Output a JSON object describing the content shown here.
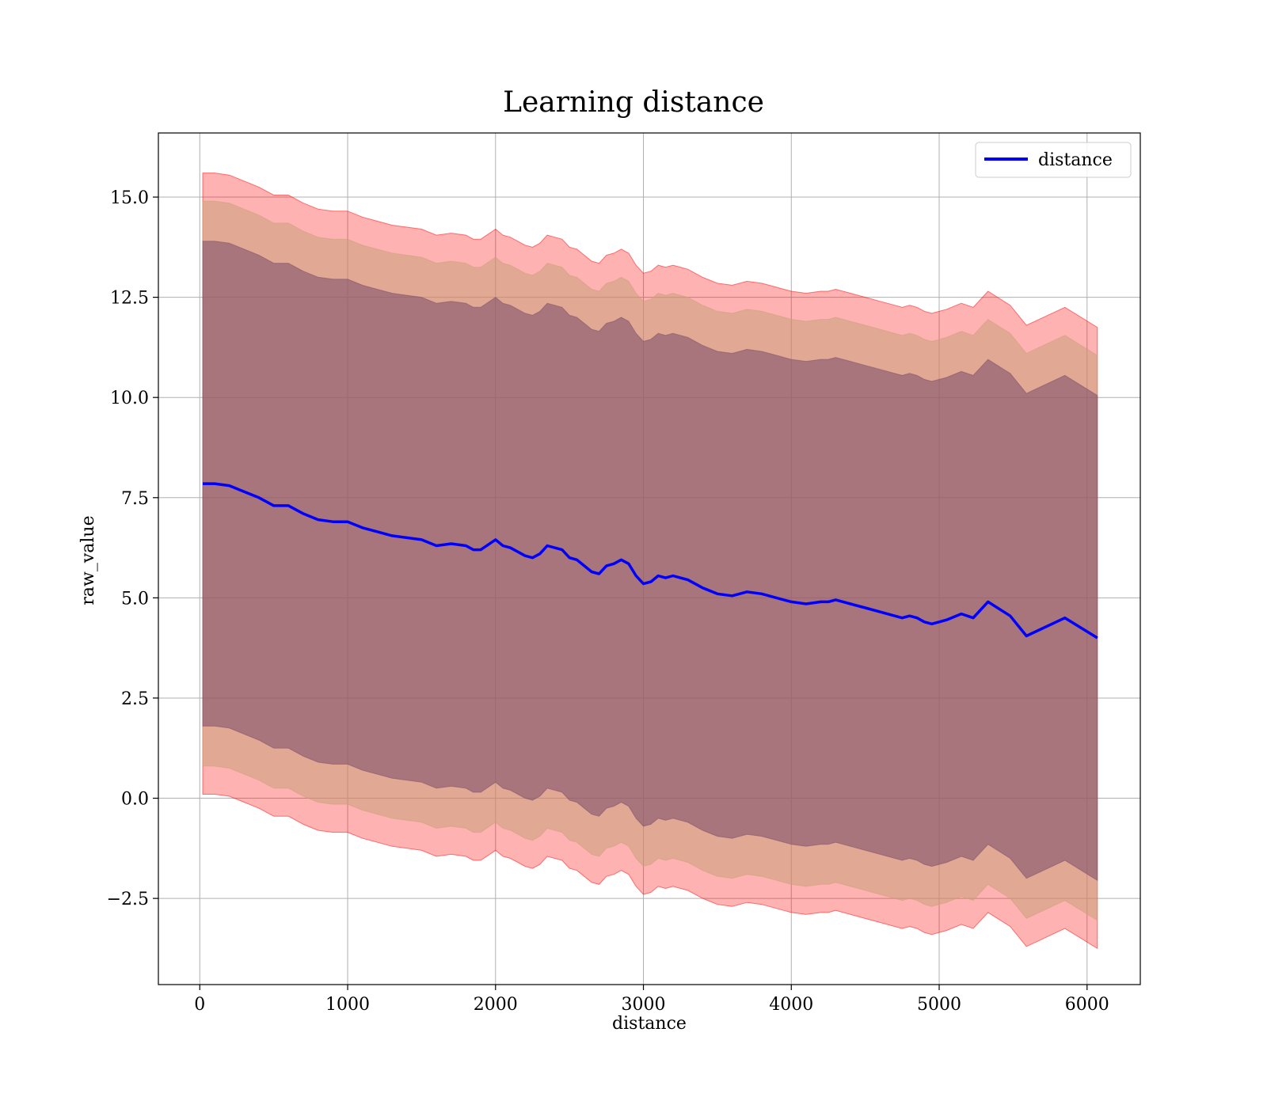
{
  "chart_data": {
    "type": "line",
    "title": "Learning distance",
    "xlabel": "distance",
    "ylabel": "raw_value",
    "xlim": [
      -280,
      6360
    ],
    "ylim": [
      -4.65,
      16.6
    ],
    "xticks": [
      0,
      1000,
      2000,
      3000,
      4000,
      5000,
      6000
    ],
    "xtick_labels": [
      "0",
      "1000",
      "2000",
      "3000",
      "4000",
      "5000",
      "6000"
    ],
    "yticks": [
      -2.5,
      0.0,
      2.5,
      5.0,
      7.5,
      10.0,
      12.5,
      15.0
    ],
    "ytick_labels": [
      "−2.5",
      "0.0",
      "2.5",
      "5.0",
      "7.5",
      "10.0",
      "12.5",
      "15.0"
    ],
    "grid": true,
    "legend_position": "top-right",
    "series": [
      {
        "name": "distance",
        "color": "#0000ff",
        "x": [
          20,
          100,
          200,
          300,
          400,
          500,
          600,
          700,
          800,
          900,
          1000,
          1100,
          1200,
          1300,
          1400,
          1500,
          1600,
          1700,
          1800,
          1850,
          1900,
          2000,
          2050,
          2100,
          2200,
          2250,
          2300,
          2350,
          2400,
          2450,
          2500,
          2550,
          2600,
          2650,
          2700,
          2750,
          2800,
          2850,
          2900,
          2950,
          3000,
          3050,
          3100,
          3150,
          3200,
          3250,
          3300,
          3400,
          3500,
          3600,
          3700,
          3800,
          3900,
          3950,
          4000,
          4100,
          4200,
          4250,
          4300,
          4400,
          4500,
          4600,
          4700,
          4750,
          4800,
          4850,
          4900,
          4950,
          5000,
          5050,
          5150,
          5230,
          5330,
          5480,
          5590,
          5850,
          6070
        ],
        "y": [
          7.85,
          7.85,
          7.8,
          7.65,
          7.5,
          7.3,
          7.3,
          7.1,
          6.95,
          6.9,
          6.9,
          6.75,
          6.65,
          6.55,
          6.5,
          6.45,
          6.3,
          6.35,
          6.3,
          6.2,
          6.2,
          6.45,
          6.3,
          6.25,
          6.05,
          6.0,
          6.1,
          6.3,
          6.25,
          6.2,
          6.0,
          5.95,
          5.8,
          5.65,
          5.6,
          5.8,
          5.85,
          5.95,
          5.85,
          5.55,
          5.35,
          5.4,
          5.55,
          5.5,
          5.55,
          5.5,
          5.45,
          5.25,
          5.1,
          5.05,
          5.15,
          5.1,
          5.0,
          4.95,
          4.9,
          4.85,
          4.9,
          4.9,
          4.95,
          4.85,
          4.75,
          4.65,
          4.55,
          4.5,
          4.55,
          4.5,
          4.4,
          4.35,
          4.4,
          4.45,
          4.6,
          4.5,
          4.9,
          4.55,
          4.05,
          4.5,
          4.0
        ]
      }
    ],
    "bands": [
      {
        "color": "#ff0000",
        "opacity": 0.3,
        "offset_upper": 7.75,
        "offset_lower": 7.75
      },
      {
        "color": "#c9a07a",
        "opacity": 0.55,
        "offset_upper": 7.05,
        "offset_lower": 7.05
      },
      {
        "color": "#7a4a6a",
        "opacity": 0.55,
        "offset_upper": 6.05,
        "offset_lower": 6.05
      }
    ]
  }
}
